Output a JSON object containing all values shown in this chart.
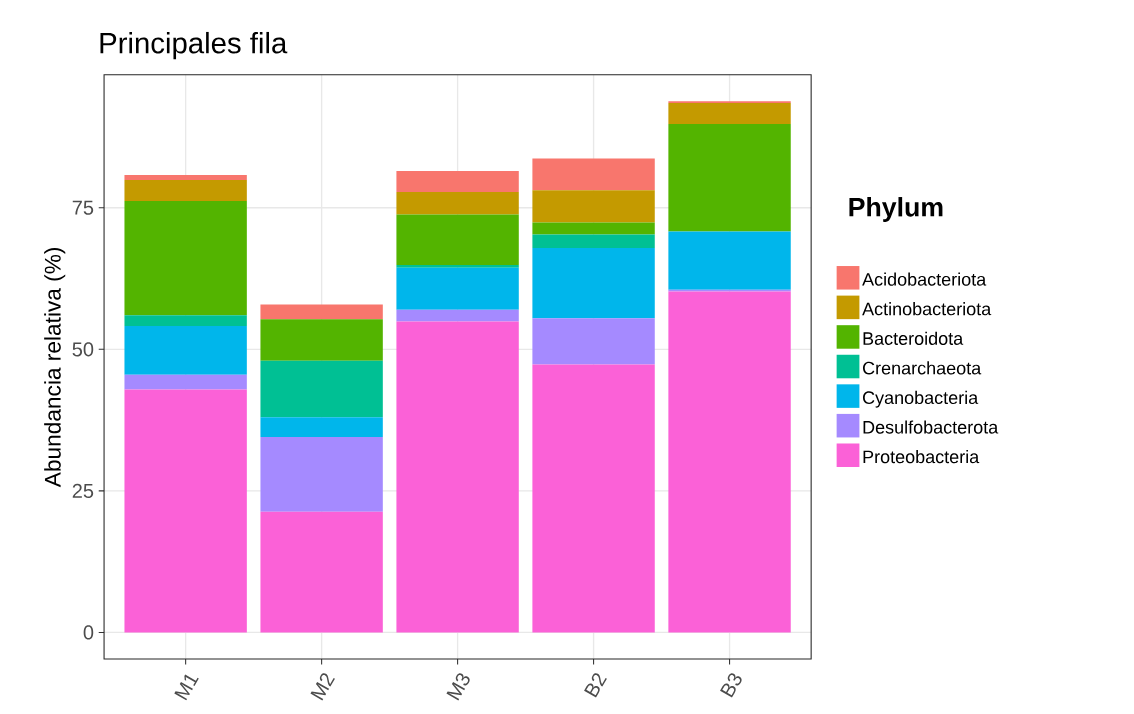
{
  "chart_data": {
    "type": "bar",
    "stacked": true,
    "title": "Principales fila",
    "ylabel": "Abundancia relativa (%)",
    "legend_title": "Phylum",
    "legend": "right",
    "grid": true,
    "categories": [
      "M1",
      "M2",
      "M3",
      "B2",
      "B3"
    ],
    "ylim": [
      -4.7,
      98.5
    ],
    "yticks": [
      0,
      25,
      50,
      75
    ],
    "series": [
      {
        "name": "Proteobacteria",
        "color": "#fb61d7",
        "values": [
          42.9,
          21.3,
          54.9,
          47.3,
          60.2
        ]
      },
      {
        "name": "Desulfobacterota",
        "color": "#a58aff",
        "values": [
          2.6,
          13.2,
          2.1,
          8.2,
          0.3
        ]
      },
      {
        "name": "Cyanobacteria",
        "color": "#00b6eb",
        "values": [
          8.6,
          3.5,
          7.4,
          12.4,
          10.3
        ]
      },
      {
        "name": "Crenarchaeota",
        "color": "#00c094",
        "values": [
          1.9,
          10.0,
          0.5,
          2.4,
          0
        ]
      },
      {
        "name": "Bacteroidota",
        "color": "#53b400",
        "values": [
          20.2,
          7.3,
          8.9,
          2.1,
          19.0
        ]
      },
      {
        "name": "Actinobacteriota",
        "color": "#c49a00",
        "values": [
          3.7,
          0,
          4.0,
          5.7,
          3.7
        ]
      },
      {
        "name": "Acidobacteriota",
        "color": "#f8766d",
        "values": [
          0.9,
          2.6,
          3.7,
          5.6,
          0.3
        ]
      }
    ]
  }
}
